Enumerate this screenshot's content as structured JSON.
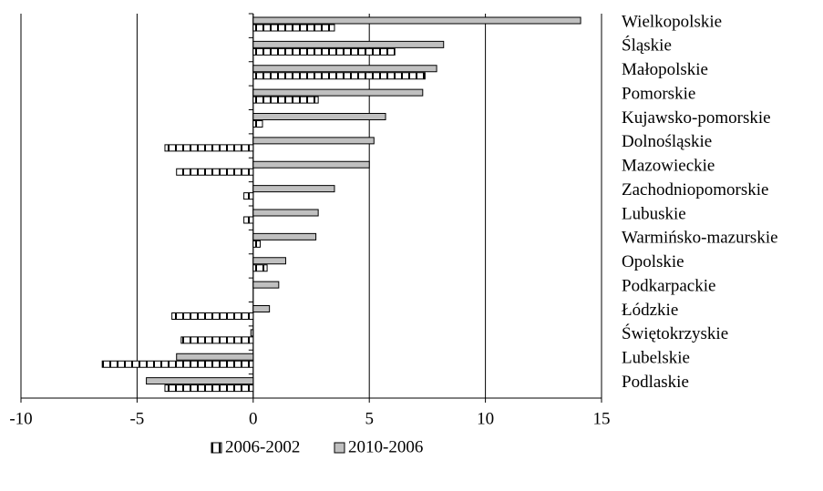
{
  "chart_data": {
    "type": "barh",
    "categories": [
      "Wielkopolskie",
      "Śląskie",
      "Małopolskie",
      "Pomorskie",
      "Kujawsko-pomorskie",
      "Dolnośląskie",
      "Mazowieckie",
      "Zachodniopomorskie",
      "Lubuskie",
      "Warmińsko-mazurskie",
      "Opolskie",
      "Podkarpackie",
      "Łódzkie",
      "Świętokrzyskie",
      "Lubelskie",
      "Podlaskie"
    ],
    "series": [
      {
        "name": "2006-2002",
        "color": "#ffffff",
        "hatch": true,
        "values": [
          3.5,
          6.1,
          7.4,
          2.8,
          0.4,
          -3.8,
          -3.3,
          -0.4,
          -0.4,
          0.3,
          0.6,
          0,
          -3.5,
          -3.1,
          -6.5,
          -3.8
        ]
      },
      {
        "name": "2010-2006",
        "color": "#c0c0c0",
        "hatch": false,
        "values": [
          14.1,
          8.2,
          7.9,
          7.3,
          5.7,
          5.2,
          5.0,
          3.5,
          2.8,
          2.7,
          1.4,
          1.1,
          0.7,
          -0.1,
          -3.3,
          -4.6
        ]
      }
    ],
    "xlim": [
      -10,
      15
    ],
    "xticks": [
      -10,
      -5,
      0,
      5,
      10,
      15
    ],
    "grid": true,
    "legend": "bottom"
  }
}
